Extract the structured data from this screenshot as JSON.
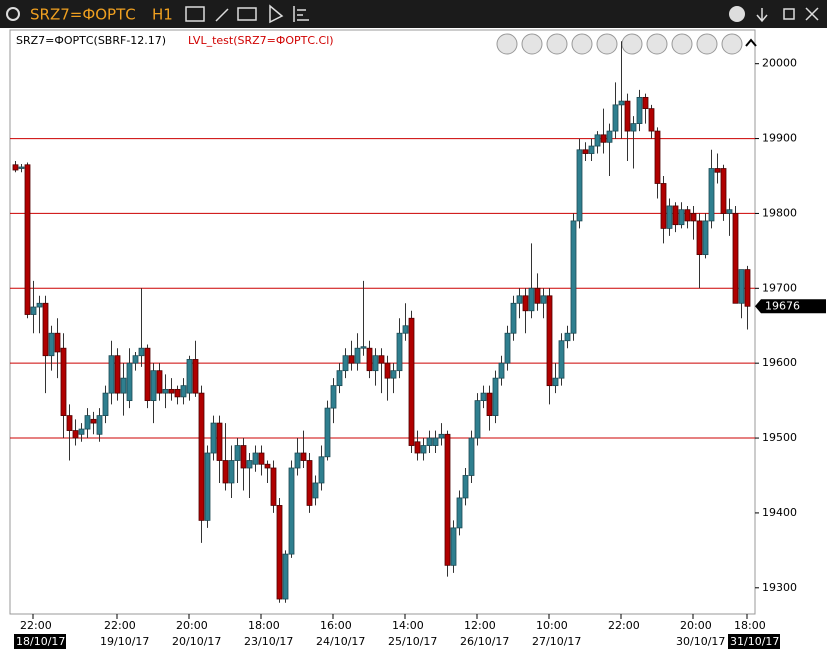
{
  "header": {
    "symbol": "SRZ7=ФОРТС",
    "timeframe": "H1"
  },
  "chart_data": {
    "type": "candlestick",
    "legend": "SRZ7=ФОРТС(SBRF-12.17)",
    "indicator": "LVL_test(SRZ7=ФОРТС.Cl)",
    "ylim": [
      19265,
      20045
    ],
    "yticks": [
      19300,
      19400,
      19500,
      19600,
      19700,
      19800,
      19900,
      20000
    ],
    "levels": [
      19900,
      19800,
      19700,
      19600,
      19500
    ],
    "level_color": "#cc0000",
    "up_color": "#2f7f8f",
    "down_color": "#b00000",
    "categories": [
      null,
      null,
      null,
      "22:00",
      null,
      null,
      null,
      null,
      null,
      null,
      null,
      null,
      null,
      null,
      null,
      null,
      null,
      "22:00",
      null,
      null,
      null,
      null,
      null,
      null,
      null,
      null,
      null,
      null,
      null,
      "20:00",
      null,
      null,
      null,
      null,
      null,
      null,
      null,
      null,
      null,
      null,
      null,
      "18:00",
      null,
      null,
      null,
      null,
      null,
      null,
      null,
      null,
      null,
      null,
      null,
      "16:00",
      null,
      null,
      null,
      null,
      null,
      null,
      null,
      null,
      null,
      null,
      null,
      "14:00",
      null,
      null,
      null,
      null,
      null,
      null,
      null,
      null,
      null,
      null,
      null,
      "12:00",
      null,
      null,
      null,
      null,
      null,
      null,
      null,
      null,
      null,
      null,
      null,
      "10:00",
      null,
      null,
      null,
      null,
      null,
      null,
      null,
      null,
      null,
      null,
      null,
      "22:00",
      null,
      null,
      null,
      null,
      null,
      null,
      null,
      null,
      null,
      null,
      null,
      "20:00",
      null,
      null,
      null,
      null,
      null,
      null,
      null,
      null,
      "18:00"
    ],
    "dates": [
      null,
      null,
      null,
      "18/10/17",
      null,
      null,
      null,
      null,
      null,
      null,
      null,
      null,
      null,
      null,
      null,
      null,
      null,
      "19/10/17",
      null,
      null,
      null,
      null,
      null,
      null,
      null,
      null,
      null,
      null,
      null,
      "20/10/17",
      null,
      null,
      null,
      null,
      null,
      null,
      null,
      null,
      null,
      null,
      null,
      "23/10/17",
      null,
      null,
      null,
      null,
      null,
      null,
      null,
      null,
      null,
      null,
      null,
      "24/10/17",
      null,
      null,
      null,
      null,
      null,
      null,
      null,
      null,
      null,
      null,
      null,
      "25/10/17",
      null,
      null,
      null,
      null,
      null,
      null,
      null,
      null,
      null,
      null,
      null,
      "26/10/17",
      null,
      null,
      null,
      null,
      null,
      null,
      null,
      null,
      null,
      null,
      null,
      "27/10/17",
      null,
      null,
      null,
      null,
      null,
      null,
      null,
      null,
      null,
      null,
      null,
      null,
      null,
      null,
      null,
      null,
      null,
      null,
      null,
      null,
      null,
      null,
      null,
      "30/10/17",
      null,
      null,
      null,
      null,
      null,
      null,
      null,
      null,
      "31/10/17"
    ],
    "ohlc": [
      [
        19865,
        19870,
        19855,
        19858
      ],
      [
        19860,
        19866,
        19855,
        19862
      ],
      [
        19865,
        19868,
        19660,
        19665
      ],
      [
        19665,
        19710,
        19640,
        19675
      ],
      [
        19675,
        19690,
        19640,
        19680
      ],
      [
        19680,
        19690,
        19560,
        19610
      ],
      [
        19610,
        19650,
        19590,
        19640
      ],
      [
        19640,
        19660,
        19580,
        19615
      ],
      [
        19620,
        19640,
        19500,
        19530
      ],
      [
        19530,
        19545,
        19470,
        19510
      ],
      [
        19510,
        19525,
        19490,
        19500
      ],
      [
        19505,
        19520,
        19495,
        19512
      ],
      [
        19512,
        19540,
        19500,
        19530
      ],
      [
        19525,
        19535,
        19505,
        19520
      ],
      [
        19505,
        19540,
        19495,
        19530
      ],
      [
        19530,
        19570,
        19520,
        19560
      ],
      [
        19560,
        19630,
        19545,
        19610
      ],
      [
        19610,
        19620,
        19550,
        19560
      ],
      [
        19560,
        19600,
        19530,
        19580
      ],
      [
        19550,
        19620,
        19540,
        19600
      ],
      [
        19600,
        19615,
        19590,
        19610
      ],
      [
        19610,
        19700,
        19595,
        19620
      ],
      [
        19620,
        19625,
        19540,
        19550
      ],
      [
        19550,
        19600,
        19520,
        19590
      ],
      [
        19590,
        19600,
        19550,
        19560
      ],
      [
        19560,
        19585,
        19540,
        19565
      ],
      [
        19565,
        19580,
        19550,
        19560
      ],
      [
        19565,
        19570,
        19545,
        19555
      ],
      [
        19555,
        19580,
        19545,
        19570
      ],
      [
        19560,
        19610,
        19550,
        19605
      ],
      [
        19605,
        19630,
        19555,
        19560
      ],
      [
        19560,
        19570,
        19360,
        19390
      ],
      [
        19390,
        19490,
        19380,
        19480
      ],
      [
        19480,
        19530,
        19470,
        19520
      ],
      [
        19520,
        19530,
        19440,
        19470
      ],
      [
        19470,
        19520,
        19430,
        19440
      ],
      [
        19440,
        19490,
        19420,
        19470
      ],
      [
        19470,
        19500,
        19440,
        19490
      ],
      [
        19490,
        19500,
        19430,
        19460
      ],
      [
        19460,
        19480,
        19420,
        19470
      ],
      [
        19465,
        19490,
        19455,
        19480
      ],
      [
        19480,
        19490,
        19450,
        19465
      ],
      [
        19465,
        19470,
        19440,
        19460
      ],
      [
        19460,
        19470,
        19400,
        19410
      ],
      [
        19410,
        19420,
        19280,
        19285
      ],
      [
        19285,
        19350,
        19280,
        19345
      ],
      [
        19345,
        19470,
        19340,
        19460
      ],
      [
        19460,
        19500,
        19450,
        19480
      ],
      [
        19480,
        19510,
        19460,
        19470
      ],
      [
        19470,
        19480,
        19400,
        19410
      ],
      [
        19420,
        19450,
        19410,
        19440
      ],
      [
        19440,
        19490,
        19430,
        19475
      ],
      [
        19475,
        19550,
        19470,
        19540
      ],
      [
        19540,
        19580,
        19520,
        19570
      ],
      [
        19570,
        19600,
        19560,
        19590
      ],
      [
        19590,
        19620,
        19580,
        19610
      ],
      [
        19610,
        19630,
        19590,
        19600
      ],
      [
        19600,
        19640,
        19590,
        19620
      ],
      [
        19620,
        19710,
        19610,
        19622
      ],
      [
        19620,
        19630,
        19580,
        19590
      ],
      [
        19590,
        19620,
        19570,
        19610
      ],
      [
        19610,
        19620,
        19560,
        19600
      ],
      [
        19600,
        19610,
        19550,
        19580
      ],
      [
        19580,
        19600,
        19560,
        19590
      ],
      [
        19590,
        19660,
        19580,
        19640
      ],
      [
        19640,
        19680,
        19630,
        19650
      ],
      [
        19660,
        19670,
        19480,
        19490
      ],
      [
        19495,
        19510,
        19470,
        19480
      ],
      [
        19480,
        19500,
        19470,
        19490
      ],
      [
        19490,
        19510,
        19480,
        19500
      ],
      [
        19490,
        19510,
        19480,
        19500
      ],
      [
        19500,
        19520,
        19490,
        19505
      ],
      [
        19505,
        19510,
        19315,
        19330
      ],
      [
        19330,
        19390,
        19320,
        19380
      ],
      [
        19380,
        19430,
        19370,
        19420
      ],
      [
        19420,
        19460,
        19410,
        19450
      ],
      [
        19450,
        19510,
        19440,
        19500
      ],
      [
        19500,
        19560,
        19490,
        19550
      ],
      [
        19550,
        19570,
        19540,
        19560
      ],
      [
        19560,
        19570,
        19510,
        19530
      ],
      [
        19530,
        19590,
        19520,
        19580
      ],
      [
        19580,
        19610,
        19570,
        19600
      ],
      [
        19600,
        19650,
        19590,
        19640
      ],
      [
        19640,
        19690,
        19630,
        19680
      ],
      [
        19680,
        19700,
        19660,
        19690
      ],
      [
        19690,
        19700,
        19640,
        19670
      ],
      [
        19670,
        19760,
        19660,
        19700
      ],
      [
        19700,
        19720,
        19670,
        19680
      ],
      [
        19680,
        19700,
        19660,
        19690
      ],
      [
        19690,
        19700,
        19545,
        19570
      ],
      [
        19570,
        19600,
        19560,
        19580
      ],
      [
        19580,
        19640,
        19570,
        19630
      ],
      [
        19630,
        19650,
        19620,
        19640
      ],
      [
        19640,
        19800,
        19630,
        19790
      ],
      [
        19790,
        19900,
        19780,
        19885
      ],
      [
        19885,
        19895,
        19870,
        19880
      ],
      [
        19880,
        19900,
        19870,
        19890
      ],
      [
        19890,
        19910,
        19880,
        19905
      ],
      [
        19905,
        19940,
        19880,
        19895
      ],
      [
        19895,
        19920,
        19850,
        19910
      ],
      [
        19910,
        19975,
        19900,
        19945
      ],
      [
        19945,
        20030,
        19900,
        19950
      ],
      [
        19950,
        19960,
        19870,
        19910
      ],
      [
        19910,
        19930,
        19860,
        19920
      ],
      [
        19920,
        19965,
        19910,
        19955
      ],
      [
        19955,
        19960,
        19920,
        19940
      ],
      [
        19940,
        19945,
        19900,
        19910
      ],
      [
        19910,
        19915,
        19820,
        19840
      ],
      [
        19840,
        19850,
        19760,
        19780
      ],
      [
        19780,
        19820,
        19770,
        19810
      ],
      [
        19810,
        19815,
        19775,
        19785
      ],
      [
        19785,
        19815,
        19780,
        19805
      ],
      [
        19805,
        19810,
        19780,
        19790
      ],
      [
        19800,
        19810,
        19765,
        19790
      ],
      [
        19790,
        19800,
        19700,
        19745
      ],
      [
        19745,
        19800,
        19740,
        19790
      ],
      [
        19790,
        19885,
        19780,
        19860
      ],
      [
        19860,
        19880,
        19840,
        19855
      ],
      [
        19860,
        19865,
        19790,
        19800
      ],
      [
        19800,
        19820,
        19770,
        19805
      ],
      [
        19800,
        19810,
        19680,
        19680
      ],
      [
        19680,
        19725,
        19660,
        19725
      ],
      [
        19725,
        19730,
        19645,
        19676
      ]
    ]
  }
}
